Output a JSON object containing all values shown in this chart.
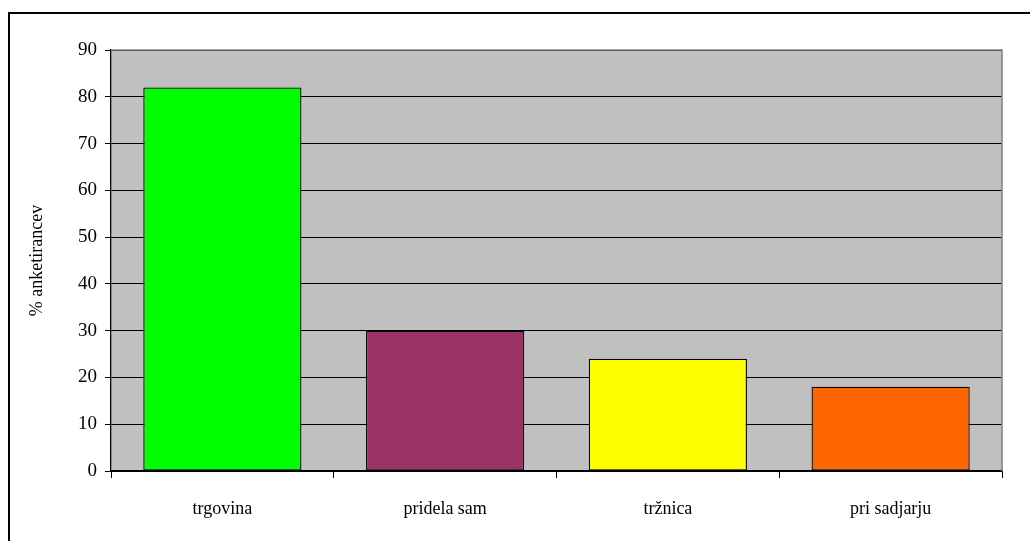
{
  "chart_data": {
    "type": "bar",
    "categories": [
      "trgovina",
      "pridela sam",
      "tržnica",
      "pri sadjarju"
    ],
    "values": [
      82,
      30,
      24,
      18
    ],
    "colors": [
      "#00ff00",
      "#993366",
      "#ffff00",
      "#ff6600"
    ],
    "ylabel": "% anketirancev",
    "ylim": [
      0,
      90
    ],
    "yticks": [
      0,
      10,
      20,
      30,
      40,
      50,
      60,
      70,
      80,
      90
    ],
    "grid": "y",
    "legend": false
  }
}
